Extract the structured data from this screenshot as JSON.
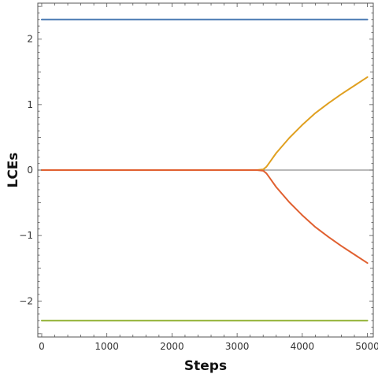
{
  "chart_data": {
    "type": "line",
    "title": "",
    "xlabel": "Steps",
    "ylabel": "LCEs",
    "xlim": [
      -60,
      5090
    ],
    "ylim": [
      -2.55,
      2.55
    ],
    "x_ticks": [
      0,
      1000,
      2000,
      3000,
      4000,
      5000
    ],
    "x_tick_labels": [
      "0",
      "1000",
      "2000",
      "3000",
      "4000",
      "5000"
    ],
    "y_ticks": [
      -2,
      -1,
      0,
      1,
      2
    ],
    "y_tick_labels": [
      "−2",
      "−1",
      "0",
      "1",
      "2"
    ],
    "grid": false,
    "zero_line": true,
    "legend": "none",
    "series": [
      {
        "color": "#4a7ab4",
        "x": [
          0,
          1000,
          2000,
          3000,
          4000,
          5000
        ],
        "y": [
          2.3,
          2.3,
          2.3,
          2.3,
          2.3,
          2.3
        ]
      },
      {
        "color": "#e0a020",
        "x": [
          0,
          1000,
          2000,
          3000,
          3300,
          3400,
          3450,
          3500,
          3600,
          3800,
          4000,
          4200,
          4400,
          4600,
          4800,
          5000
        ],
        "y": [
          0,
          0,
          0,
          0,
          0,
          0.01,
          0.05,
          0.12,
          0.26,
          0.49,
          0.69,
          0.87,
          1.02,
          1.16,
          1.29,
          1.42
        ]
      },
      {
        "color": "#e06030",
        "x": [
          0,
          1000,
          2000,
          3000,
          3300,
          3400,
          3450,
          3500,
          3600,
          3800,
          4000,
          4200,
          4400,
          4600,
          4800,
          5000
        ],
        "y": [
          0,
          0,
          0,
          0,
          0,
          -0.01,
          -0.05,
          -0.12,
          -0.26,
          -0.49,
          -0.69,
          -0.87,
          -1.02,
          -1.16,
          -1.29,
          -1.42
        ]
      },
      {
        "color": "#8fb030",
        "x": [
          0,
          1000,
          2000,
          3000,
          4000,
          5000
        ],
        "y": [
          -2.3,
          -2.3,
          -2.3,
          -2.3,
          -2.3,
          -2.3
        ]
      }
    ]
  }
}
